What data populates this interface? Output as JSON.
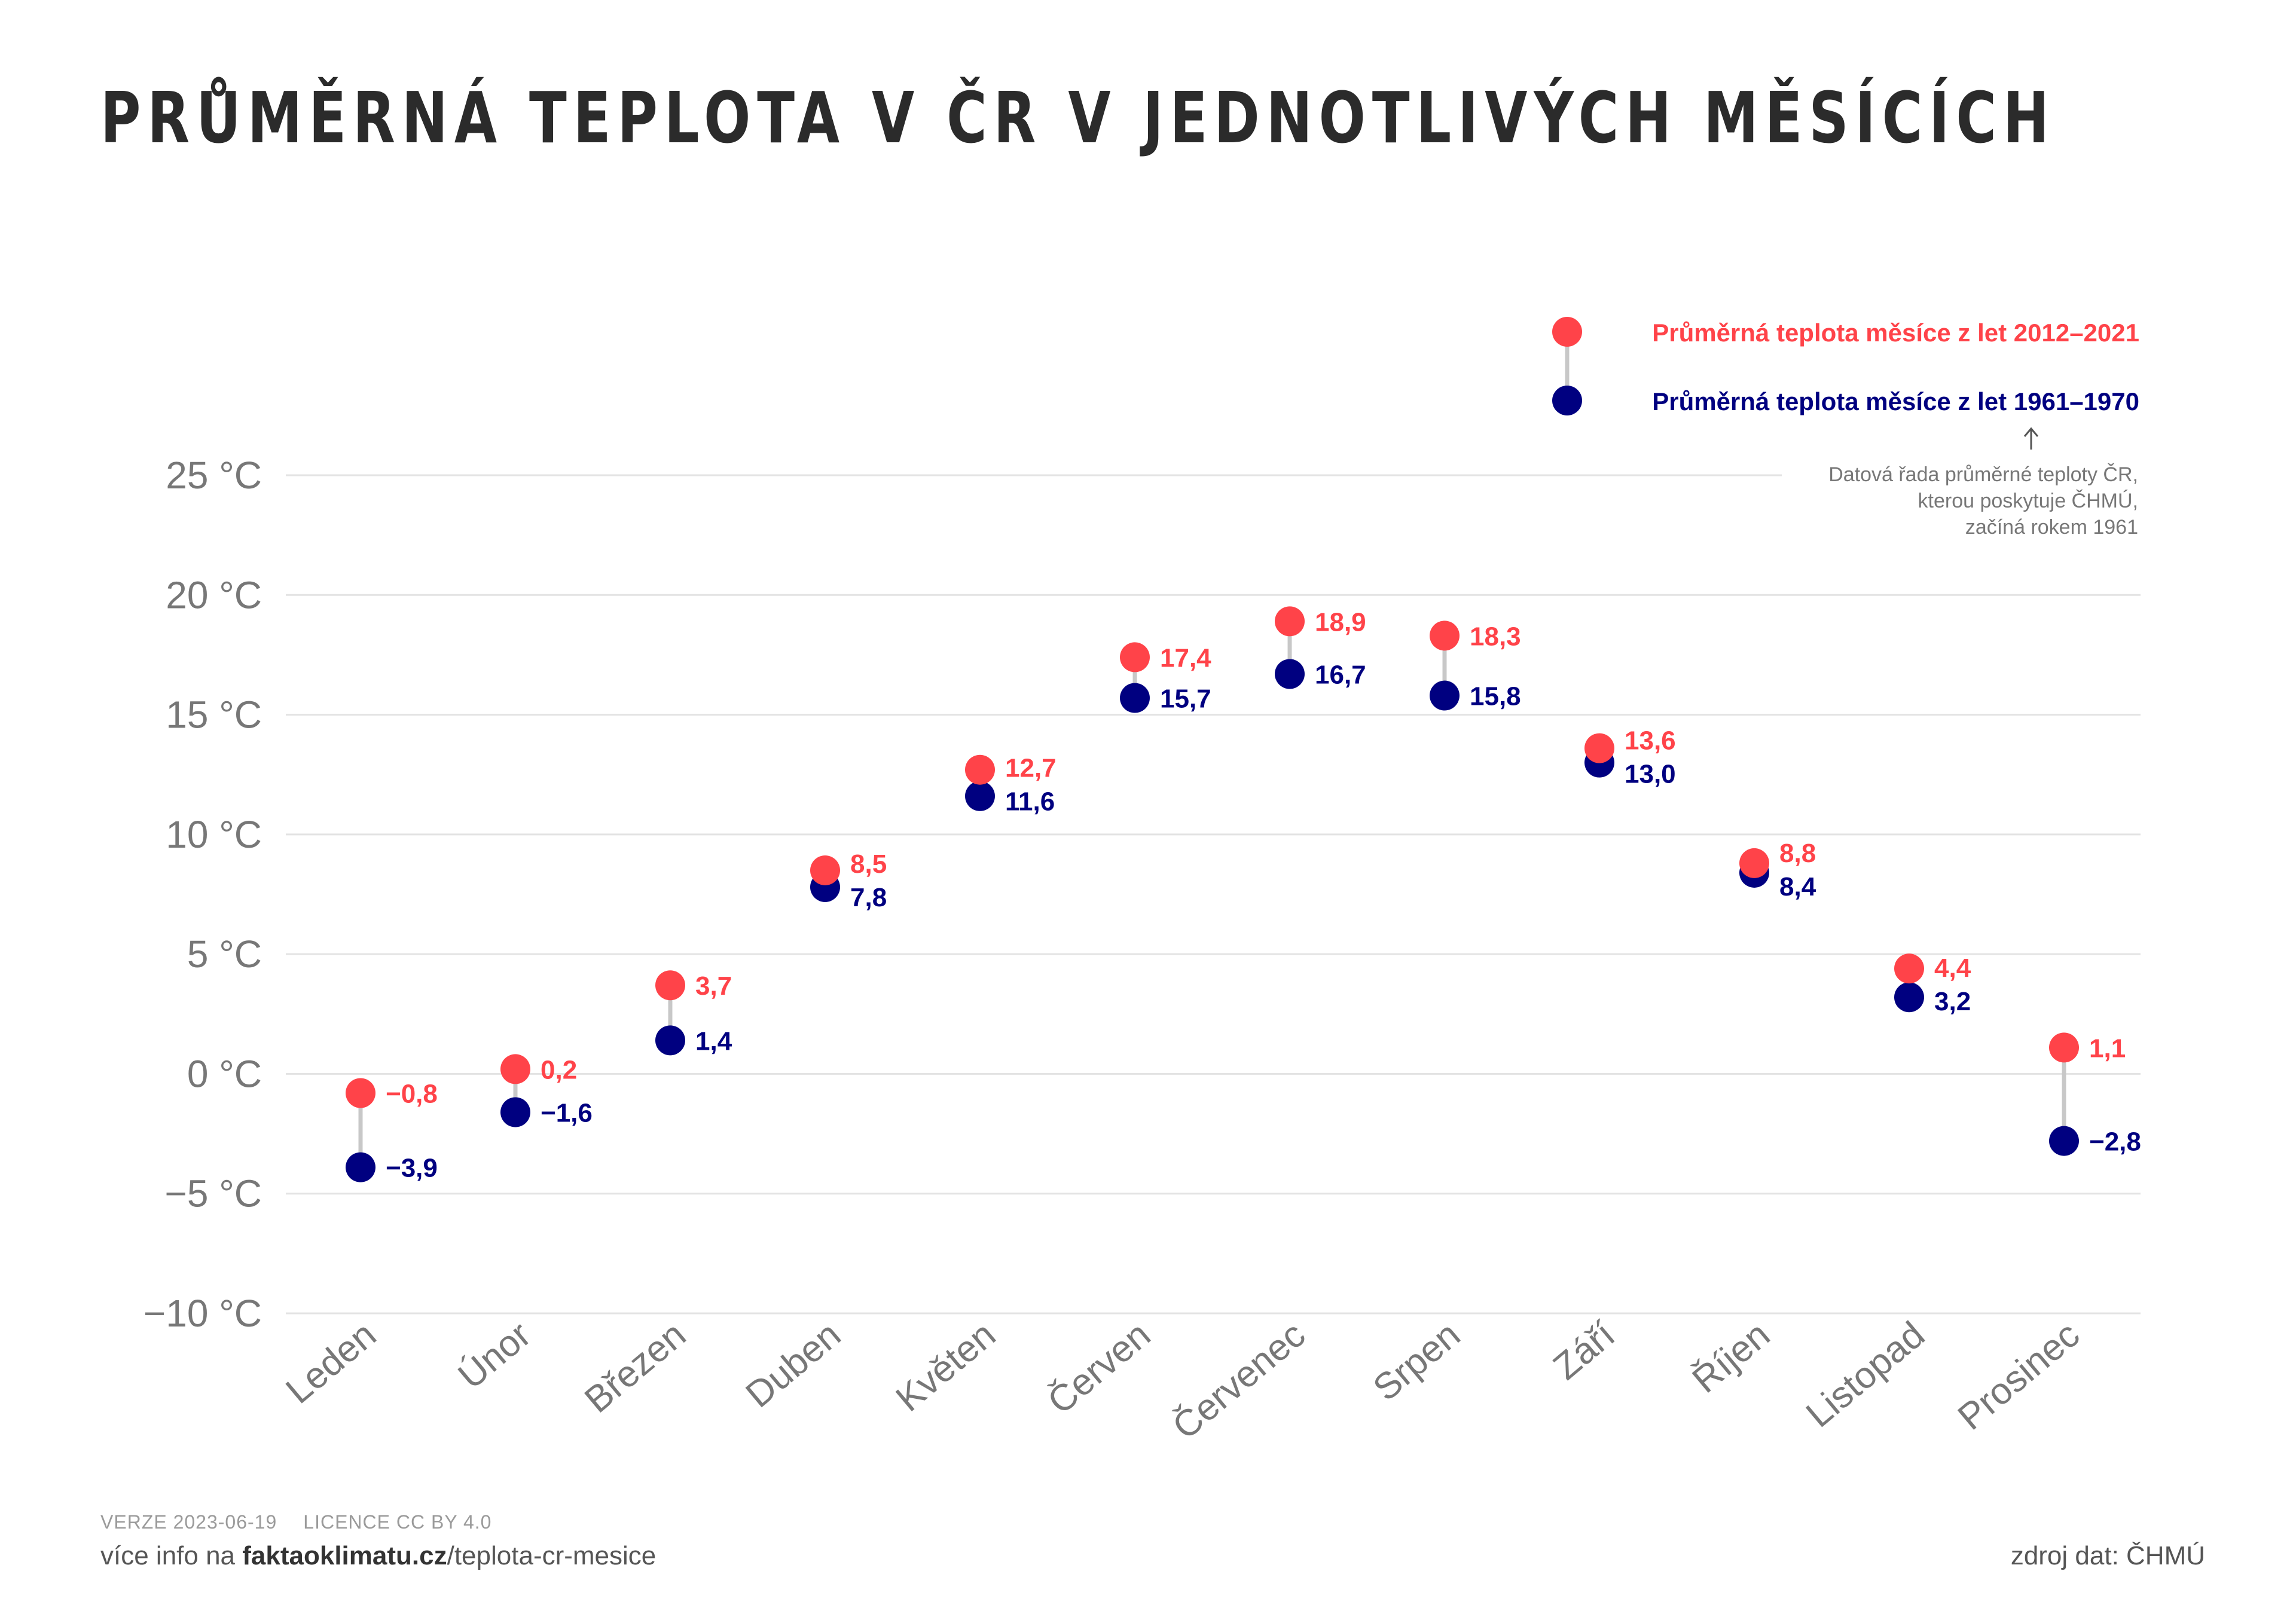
{
  "title": "PRŮMĚRNÁ TEPLOTA V ČR V JEDNOTLIVÝCH MĚSÍCÍCH",
  "colors": {
    "recent": "#ff4349",
    "past": "#000080",
    "connector": "#c8c8c8",
    "grid": "#e3e3e3",
    "axis_text": "#777777",
    "title": "#2b2b2b"
  },
  "chart_data": {
    "type": "dumbbell",
    "title": "PRŮMĚRNÁ TEPLOTA V ČR V JEDNOTLIVÝCH MĚSÍCÍCH",
    "xlabel": "",
    "ylabel": "",
    "ylim": [
      -10,
      25
    ],
    "yticks": [
      25,
      20,
      15,
      10,
      5,
      0,
      -5,
      -10
    ],
    "ytick_labels": [
      "25 °C",
      "20 °C",
      "15 °C",
      "10 °C",
      "5 °C",
      "0 °C",
      "−5 °C",
      "−10 °C"
    ],
    "grid": true,
    "legend_position": "top-right",
    "categories": [
      "Leden",
      "Únor",
      "Březen",
      "Duben",
      "Květen",
      "Červen",
      "Červenec",
      "Srpen",
      "Září",
      "Říjen",
      "Listopad",
      "Prosinec"
    ],
    "series": [
      {
        "name": "Průměrná teplota měsíce z let 2012–2021",
        "values": [
          -0.8,
          0.2,
          3.7,
          8.5,
          12.7,
          17.4,
          18.9,
          18.3,
          13.6,
          8.8,
          4.4,
          1.1
        ],
        "labels": [
          "−0,8",
          "0,2",
          "3,7",
          "8,5",
          "12,7",
          "17,4",
          "18,9",
          "18,3",
          "13,6",
          "8,8",
          "4,4",
          "1,1"
        ]
      },
      {
        "name": "Průměrná teplota měsíce z let 1961–1970",
        "values": [
          -3.9,
          -1.6,
          1.4,
          7.8,
          11.6,
          15.7,
          16.7,
          15.8,
          13.0,
          8.4,
          3.2,
          -2.8
        ],
        "labels": [
          "−3,9",
          "−1,6",
          "1,4",
          "7,8",
          "11,6",
          "15,7",
          "16,7",
          "15,8",
          "13,0",
          "8,4",
          "3,2",
          "−2,8"
        ]
      }
    ],
    "annotation": [
      "Datová řada průměrné teploty ČR,",
      "kterou poskytuje ČHMÚ,",
      "začíná rokem 1961"
    ]
  },
  "footer": {
    "version": "VERZE 2023-06-19",
    "license": "LICENCE CC BY 4.0",
    "more_info_prefix": "více info na ",
    "more_info_domain": "faktaoklimatu.cz",
    "more_info_path": "/teplota-cr-mesice",
    "source": "zdroj dat: ČHMÚ"
  }
}
